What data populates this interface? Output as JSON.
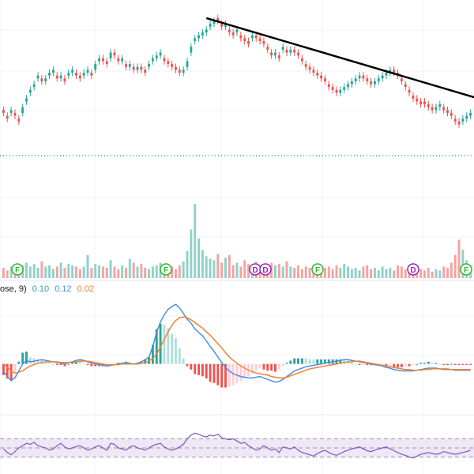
{
  "colors": {
    "up": "#26a69a",
    "down": "#ef5350",
    "up_volume": "#8fd1c8",
    "down_volume": "#f3a3a1",
    "trendline": "#000000",
    "macd_line": "#4a90e2",
    "signal_line": "#f2822e",
    "rsi_line": "#7e57c2",
    "rsi_band": "#ede7f6",
    "grid": "#f0f3fa",
    "pane_separator": "#e6e8ee",
    "price_marker_dots": "#26a69a",
    "event_f": "#2eb82e",
    "event_d": "#9c27b0"
  },
  "macd_legend": {
    "prefix": "ose, 9)",
    "macd_value": "0.10",
    "signal_value": "0.12",
    "histogram_value": "0.02"
  },
  "event_markers": [
    {
      "label": "F",
      "kind": "F"
    },
    {
      "label": "F",
      "kind": "F"
    },
    {
      "label": "D",
      "kind": "D"
    },
    {
      "label": "D",
      "kind": "D"
    },
    {
      "label": "F",
      "kind": "F"
    },
    {
      "label": "D",
      "kind": "D"
    },
    {
      "label": "F",
      "kind": "F"
    }
  ],
  "chart_data": [
    {
      "type": "candlestick",
      "pane": "price",
      "xlabel": "",
      "ylabel": "",
      "grid": true,
      "ylim": [
        0,
        100
      ],
      "note_values": "relative price levels estimated from shape; the axis scale is not visible",
      "trendline": {
        "from_bar": 53,
        "to_bar": 122,
        "start": 98,
        "end": 70
      },
      "series": [
        {
          "key": "close",
          "values": [
            65,
            63,
            66,
            64,
            62,
            67,
            70,
            73,
            75,
            78,
            76,
            77,
            79,
            80,
            77,
            78,
            76,
            79,
            80,
            78,
            77,
            79,
            80,
            78,
            82,
            84,
            83,
            82,
            86,
            85,
            83,
            84,
            81,
            82,
            80,
            81,
            80,
            79,
            82,
            84,
            85,
            86,
            83,
            82,
            81,
            80,
            79,
            80,
            83,
            88,
            91,
            92,
            93,
            94,
            96,
            97,
            97,
            95,
            96,
            93,
            92,
            94,
            91,
            90,
            89,
            92,
            91,
            90,
            89,
            87,
            85,
            86,
            84,
            88,
            86,
            87,
            86,
            85,
            83,
            81,
            80,
            79,
            78,
            77,
            76,
            74,
            73,
            72,
            73,
            74,
            75,
            76,
            77,
            78,
            77,
            76,
            75,
            76,
            77,
            78,
            79,
            80,
            79,
            78,
            76,
            74,
            72,
            70,
            69,
            68,
            68,
            67,
            66,
            67,
            68,
            66,
            65,
            64,
            62,
            61,
            63,
            64,
            65
          ]
        },
        {
          "key": "open",
          "values": [
            66,
            64,
            65,
            65,
            63,
            65,
            69,
            72,
            74,
            77,
            77,
            76,
            78,
            79,
            78,
            77,
            77,
            78,
            79,
            79,
            78,
            78,
            79,
            79,
            80,
            83,
            84,
            83,
            84,
            86,
            84,
            83,
            82,
            81,
            81,
            80,
            81,
            80,
            81,
            83,
            84,
            85,
            84,
            83,
            82,
            81,
            80,
            79,
            81,
            86,
            90,
            91,
            92,
            93,
            95,
            96,
            98,
            96,
            95,
            94,
            93,
            93,
            92,
            91,
            90,
            91,
            92,
            91,
            90,
            88,
            86,
            85,
            85,
            87,
            87,
            86,
            87,
            86,
            84,
            82,
            81,
            80,
            79,
            78,
            77,
            75,
            74,
            73,
            72,
            73,
            74,
            75,
            76,
            77,
            78,
            77,
            76,
            75,
            76,
            77,
            78,
            79,
            80,
            79,
            77,
            75,
            73,
            71,
            70,
            69,
            69,
            68,
            67,
            66,
            67,
            67,
            66,
            65,
            63,
            62,
            62,
            63,
            64
          ]
        }
      ]
    },
    {
      "type": "bar",
      "pane": "volume",
      "xlabel": "",
      "ylabel": "",
      "note_values": "relative volume estimated from bar heights; no scale is visible",
      "values": [
        8,
        6,
        9,
        7,
        5,
        10,
        12,
        9,
        11,
        8,
        13,
        9,
        10,
        7,
        9,
        12,
        8,
        11,
        10,
        9,
        7,
        9,
        18,
        8,
        11,
        10,
        9,
        8,
        14,
        9,
        7,
        10,
        8,
        15,
        12,
        9,
        11,
        8,
        7,
        9,
        10,
        12,
        8,
        11,
        9,
        7,
        10,
        13,
        21,
        38,
        58,
        31,
        22,
        17,
        15,
        14,
        19,
        12,
        16,
        18,
        10,
        12,
        9,
        14,
        11,
        9,
        13,
        8,
        10,
        9,
        12,
        10,
        11,
        9,
        13,
        9,
        8,
        10,
        7,
        9,
        8,
        10,
        7,
        6,
        8,
        9,
        7,
        10,
        8,
        11,
        9,
        7,
        8,
        6,
        9,
        10,
        7,
        8,
        6,
        9,
        7,
        8,
        6,
        10,
        9,
        7,
        8,
        6,
        5,
        7,
        6,
        8,
        5,
        7,
        6,
        9,
        8,
        12,
        18,
        30,
        22,
        14,
        10
      ]
    },
    {
      "type": "line",
      "pane": "macd",
      "xlabel": "",
      "ylabel": "",
      "ylim": [
        -0.5,
        1.0
      ],
      "note_values": "estimated from line shapes; the axis scale is not visible",
      "series": [
        {
          "key": "macd",
          "values": [
            -0.1,
            -0.18,
            -0.24,
            -0.2,
            -0.1,
            0.0,
            0.05,
            0.03,
            0.04,
            0.05,
            0.06,
            0.05,
            0.04,
            0.03,
            0.02,
            0.01,
            0.0,
            0.02,
            0.03,
            0.05,
            0.06,
            0.05,
            0.03,
            0.01,
            0.0,
            -0.01,
            -0.02,
            -0.03,
            -0.02,
            -0.01,
            0.0,
            0.01,
            0.02,
            0.01,
            0.0,
            0.01,
            0.03,
            0.06,
            0.1,
            0.25,
            0.45,
            0.6,
            0.7,
            0.78,
            0.82,
            0.85,
            0.8,
            0.72,
            0.64,
            0.58,
            0.5,
            0.45,
            0.4,
            0.33,
            0.25,
            0.18,
            0.1,
            0.02,
            -0.05,
            -0.1,
            -0.14,
            -0.16,
            -0.18,
            -0.19,
            -0.2,
            -0.2,
            -0.19,
            -0.18,
            -0.2,
            -0.22,
            -0.24,
            -0.26,
            -0.25,
            -0.22,
            -0.18,
            -0.14,
            -0.1,
            -0.08,
            -0.06,
            -0.04,
            -0.03,
            -0.02,
            -0.01,
            0.0,
            0.01,
            0.02,
            0.03,
            0.04,
            0.05,
            0.06,
            0.06,
            0.05,
            0.04,
            0.03,
            0.02,
            0.01,
            0.0,
            -0.01,
            -0.02,
            -0.03,
            -0.05,
            -0.06,
            -0.08,
            -0.09,
            -0.1,
            -0.1,
            -0.1,
            -0.1,
            -0.09,
            -0.08,
            -0.07,
            -0.06,
            -0.06,
            -0.06,
            -0.07,
            -0.08,
            -0.08,
            -0.08,
            -0.09,
            -0.09,
            -0.09,
            -0.09,
            -0.09
          ]
        },
        {
          "key": "signal",
          "values": [
            0.0,
            -0.05,
            -0.1,
            -0.13,
            -0.12,
            -0.1,
            -0.06,
            -0.03,
            -0.01,
            0.01,
            0.02,
            0.03,
            0.03,
            0.03,
            0.03,
            0.02,
            0.02,
            0.02,
            0.02,
            0.03,
            0.04,
            0.04,
            0.04,
            0.03,
            0.02,
            0.01,
            0.0,
            -0.01,
            -0.01,
            -0.01,
            -0.01,
            0.0,
            0.0,
            0.0,
            0.0,
            0.0,
            0.01,
            0.02,
            0.04,
            0.08,
            0.14,
            0.24,
            0.35,
            0.46,
            0.55,
            0.62,
            0.66,
            0.67,
            0.66,
            0.63,
            0.59,
            0.55,
            0.51,
            0.46,
            0.41,
            0.35,
            0.29,
            0.23,
            0.16,
            0.1,
            0.05,
            0.01,
            -0.03,
            -0.06,
            -0.09,
            -0.11,
            -0.13,
            -0.14,
            -0.15,
            -0.16,
            -0.18,
            -0.19,
            -0.2,
            -0.2,
            -0.19,
            -0.17,
            -0.15,
            -0.13,
            -0.11,
            -0.09,
            -0.07,
            -0.06,
            -0.05,
            -0.04,
            -0.03,
            -0.02,
            -0.01,
            0.0,
            0.01,
            0.02,
            0.03,
            0.03,
            0.04,
            0.04,
            0.03,
            0.02,
            0.01,
            0.0,
            -0.01,
            -0.02,
            -0.03,
            -0.04,
            -0.05,
            -0.06,
            -0.07,
            -0.08,
            -0.08,
            -0.09,
            -0.09,
            -0.09,
            -0.08,
            -0.08,
            -0.07,
            -0.07,
            -0.07,
            -0.07,
            -0.07,
            -0.08,
            -0.08,
            -0.08,
            -0.08,
            -0.08,
            -0.08
          ]
        }
      ]
    },
    {
      "type": "line",
      "pane": "rsi",
      "xlabel": "",
      "ylabel": "",
      "ylim": [
        0,
        100
      ],
      "band": [
        30,
        70
      ],
      "note_values": "estimated from line shape; the axis scale is not visible",
      "values": [
        48,
        40,
        35,
        42,
        50,
        55,
        60,
        58,
        62,
        55,
        52,
        50,
        45,
        48,
        55,
        60,
        52,
        48,
        50,
        53,
        55,
        50,
        45,
        48,
        52,
        55,
        50,
        45,
        60,
        58,
        50,
        48,
        45,
        52,
        55,
        50,
        48,
        45,
        50,
        55,
        58,
        60,
        52,
        48,
        45,
        48,
        52,
        58,
        70,
        78,
        82,
        80,
        76,
        74,
        78,
        76,
        80,
        72,
        70,
        68,
        70,
        65,
        60,
        62,
        55,
        50,
        45,
        48,
        55,
        50,
        45,
        48,
        40,
        52,
        50,
        48,
        52,
        45,
        40,
        38,
        35,
        32,
        38,
        42,
        45,
        40,
        36,
        34,
        38,
        42,
        45,
        48,
        50,
        52,
        48,
        44,
        42,
        45,
        48,
        50,
        52,
        48,
        44,
        40,
        36,
        34,
        30,
        28,
        32,
        36,
        38,
        40,
        38,
        36,
        38,
        42,
        40,
        38,
        36,
        38,
        40,
        42,
        45
      ]
    }
  ]
}
